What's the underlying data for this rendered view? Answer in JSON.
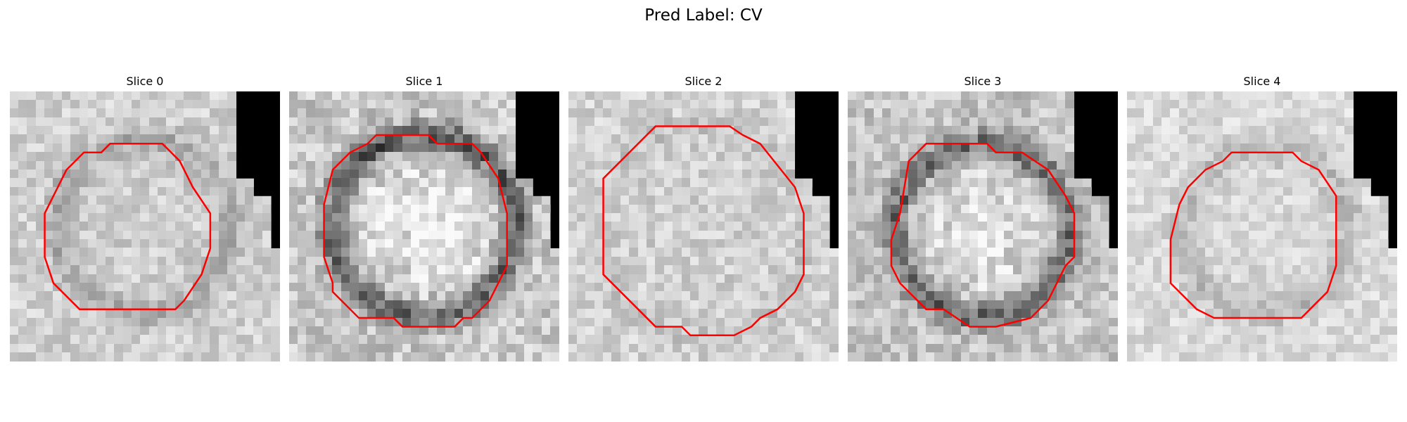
{
  "figure": {
    "title": "Pred Label: CV"
  },
  "slices": [
    {
      "label": "Slice 0",
      "contour_color": "#ff0000"
    },
    {
      "label": "Slice 1",
      "contour_color": "#ff0000"
    },
    {
      "label": "Slice 2",
      "contour_color": "#ff0000"
    },
    {
      "label": "Slice 3",
      "contour_color": "#ff0000"
    },
    {
      "label": "Slice 4",
      "contour_color": "#ff0000"
    }
  ]
}
